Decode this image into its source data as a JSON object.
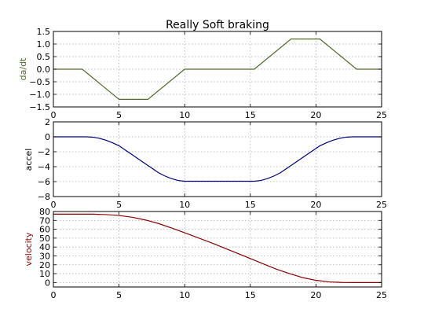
{
  "chart_data": {
    "title": "Really Soft braking",
    "type": "line",
    "x_ticks": [
      0,
      5,
      10,
      15,
      20,
      25
    ],
    "xlim": [
      0,
      25
    ],
    "grid": true,
    "subplots": [
      {
        "id": "dadt",
        "ylabel": "da/dt",
        "color": "#556b2f",
        "ylim": [
          -1.5,
          1.5
        ],
        "y_ticks": [
          -1.5,
          -1.0,
          -0.5,
          0.0,
          0.5,
          1.0,
          1.5
        ],
        "y_tick_labels": [
          "−1.5",
          "−1.0",
          "−0.5",
          "0.0",
          "0.5",
          "1.0",
          "1.5"
        ],
        "x": [
          0,
          2.2,
          5,
          7.2,
          10,
          15.3,
          18.1,
          20.3,
          23.1,
          25
        ],
        "y": [
          0,
          0,
          -1.2,
          -1.2,
          0,
          0,
          1.2,
          1.2,
          0,
          0
        ]
      },
      {
        "id": "accel",
        "ylabel": "accel",
        "color": "#000080",
        "ylim": [
          -8,
          2
        ],
        "y_ticks": [
          -8,
          -6,
          -4,
          -2,
          0,
          2
        ],
        "y_tick_labels": [
          "−8",
          "−6",
          "−4",
          "−2",
          "0",
          "2"
        ],
        "x": [
          0,
          2.5,
          3,
          3.5,
          4,
          4.5,
          5,
          5.5,
          6,
          6.5,
          7,
          7.5,
          8,
          8.5,
          9,
          9.5,
          10,
          15.3,
          15.8,
          16.3,
          16.8,
          17.3,
          17.8,
          18.3,
          18.8,
          19.3,
          19.8,
          20.3,
          20.8,
          21.3,
          21.8,
          22.3,
          22.8,
          23.3,
          25
        ],
        "y": [
          0,
          0,
          -0.05,
          -0.2,
          -0.45,
          -0.8,
          -1.2,
          -1.8,
          -2.4,
          -3.0,
          -3.6,
          -4.2,
          -4.8,
          -5.25,
          -5.6,
          -5.85,
          -5.95,
          -5.95,
          -5.85,
          -5.6,
          -5.25,
          -4.8,
          -4.2,
          -3.6,
          -3.0,
          -2.4,
          -1.8,
          -1.2,
          -0.8,
          -0.45,
          -0.2,
          -0.05,
          0,
          0,
          0
        ]
      },
      {
        "id": "velocity",
        "ylabel": "velocity",
        "color": "#8b0000",
        "ylim": [
          -5,
          80
        ],
        "y_ticks": [
          0,
          10,
          20,
          30,
          40,
          50,
          60,
          70,
          80
        ],
        "y_tick_labels": [
          "0",
          "10",
          "20",
          "30",
          "40",
          "50",
          "60",
          "70",
          "80"
        ],
        "x": [
          0,
          3,
          4,
          5,
          6,
          7,
          8,
          9,
          10,
          11,
          12,
          13,
          14,
          15,
          16,
          17,
          18,
          19,
          20,
          21,
          22,
          23,
          25
        ],
        "y": [
          77,
          77,
          76.5,
          75.5,
          73.5,
          70.5,
          66.5,
          61.5,
          56,
          50.5,
          45,
          39,
          33,
          27,
          21,
          15,
          10,
          5.5,
          2.5,
          0.7,
          0.1,
          0,
          0
        ]
      }
    ]
  }
}
